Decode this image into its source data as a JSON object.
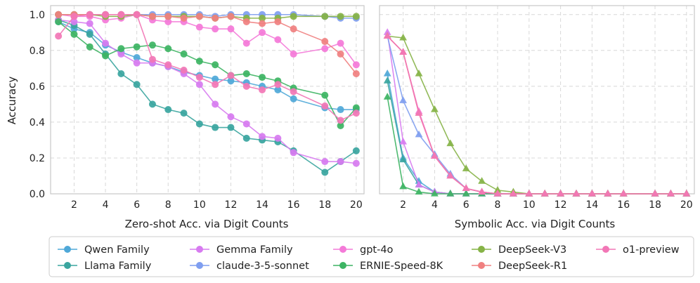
{
  "chart_data": [
    {
      "type": "line",
      "xlabel": "Zero-shot Acc. via Digit Counts",
      "ylabel": "Accuracy",
      "xlim": [
        0.5,
        20.5
      ],
      "ylim": [
        0,
        1.05
      ],
      "xticks": [
        2,
        4,
        6,
        8,
        10,
        12,
        14,
        16,
        18,
        20
      ],
      "yticks": [
        0.0,
        0.2,
        0.4,
        0.6,
        0.8,
        1.0
      ],
      "x": [
        1,
        2,
        3,
        4,
        5,
        6,
        7,
        8,
        9,
        10,
        11,
        12,
        13,
        14,
        15,
        16,
        18,
        19,
        20
      ],
      "grid": true,
      "series": [
        {
          "name": "Qwen Family",
          "color": "#4fa8d8",
          "values": [
            0.96,
            0.92,
            0.9,
            0.83,
            0.79,
            0.76,
            0.73,
            0.71,
            0.68,
            0.66,
            0.64,
            0.63,
            0.62,
            0.6,
            0.58,
            0.53,
            0.48,
            0.47,
            0.47
          ]
        },
        {
          "name": "Llama Family",
          "color": "#3aa59f",
          "values": [
            0.97,
            0.94,
            0.89,
            0.78,
            0.67,
            0.61,
            0.5,
            0.47,
            0.45,
            0.39,
            0.37,
            0.37,
            0.31,
            0.3,
            0.29,
            0.24,
            0.12,
            0.18,
            0.24
          ]
        },
        {
          "name": "Gemma Family",
          "color": "#d77bf0",
          "values": [
            0.97,
            0.96,
            0.95,
            0.84,
            0.78,
            0.73,
            0.73,
            0.71,
            0.67,
            0.61,
            0.5,
            0.43,
            0.39,
            0.32,
            0.31,
            0.23,
            0.18,
            0.18,
            0.17
          ]
        },
        {
          "name": "claude-3-5-sonnet",
          "color": "#7f9ef0",
          "values": [
            1.0,
            1.0,
            1.0,
            1.0,
            1.0,
            1.0,
            1.0,
            1.0,
            1.0,
            1.0,
            0.99,
            1.0,
            1.0,
            1.0,
            1.0,
            1.0,
            0.99,
            0.98,
            0.98
          ]
        },
        {
          "name": "gpt-4o",
          "color": "#f47ad8",
          "values": [
            1.0,
            0.99,
            0.99,
            0.97,
            0.98,
            1.0,
            0.97,
            0.96,
            0.96,
            0.93,
            0.92,
            0.92,
            0.84,
            0.9,
            0.86,
            0.78,
            0.81,
            0.84,
            0.72
          ]
        },
        {
          "name": "ERNIE-Speed-8K",
          "color": "#3db463",
          "values": [
            0.96,
            0.89,
            0.82,
            0.77,
            0.81,
            0.82,
            0.83,
            0.81,
            0.78,
            0.74,
            0.72,
            0.66,
            0.67,
            0.65,
            0.63,
            0.59,
            0.55,
            0.38,
            0.48
          ]
        },
        {
          "name": "DeepSeek-V3",
          "color": "#86b347",
          "values": [
            1.0,
            1.0,
            1.0,
            0.99,
            0.99,
            1.0,
            0.99,
            0.99,
            0.99,
            0.99,
            0.98,
            0.99,
            0.98,
            0.98,
            0.98,
            0.99,
            0.99,
            0.99,
            0.99
          ]
        },
        {
          "name": "DeepSeek-R1",
          "color": "#f08080",
          "values": [
            1.0,
            1.0,
            1.0,
            1.0,
            1.0,
            1.0,
            0.99,
            0.99,
            0.98,
            0.99,
            0.98,
            0.99,
            0.96,
            0.95,
            0.96,
            0.92,
            0.85,
            0.78,
            0.67
          ]
        },
        {
          "name": "o1-preview",
          "color": "#f277b6",
          "values": [
            0.88,
            0.99,
            1.0,
            1.0,
            1.0,
            1.0,
            0.75,
            0.72,
            0.69,
            0.65,
            0.61,
            0.66,
            0.6,
            0.58,
            0.61,
            0.57,
            0.49,
            0.41,
            0.45
          ]
        }
      ]
    },
    {
      "type": "line",
      "xlabel": "Symbolic Acc. via Digit Counts",
      "ylabel": "",
      "xlim": [
        0.5,
        20.5
      ],
      "ylim": [
        0,
        1.05
      ],
      "xticks": [
        2,
        4,
        6,
        8,
        10,
        12,
        14,
        16,
        18,
        20
      ],
      "x": [
        1,
        2,
        3,
        4,
        5,
        6,
        7,
        8,
        9,
        10,
        11,
        12,
        13,
        14,
        15,
        16,
        18,
        19,
        20
      ],
      "marker": "triangle",
      "grid": true,
      "series": [
        {
          "name": "Qwen Family",
          "color": "#4fa8d8",
          "values": [
            0.67,
            0.2,
            0.07,
            0.01,
            0.0,
            0.0,
            0.0,
            0.0,
            0.0,
            0.0,
            0.0,
            0.0,
            0.0,
            0.0,
            0.0,
            0.0,
            0.0,
            0.0,
            0.0
          ]
        },
        {
          "name": "Llama Family",
          "color": "#3aa59f",
          "values": [
            0.63,
            0.19,
            0.05,
            0.01,
            0.0,
            0.0,
            0.0,
            0.0,
            0.0,
            0.0,
            0.0,
            0.0,
            0.0,
            0.0,
            0.0,
            0.0,
            0.0,
            0.0,
            0.0
          ]
        },
        {
          "name": "Gemma Family",
          "color": "#d77bf0",
          "values": [
            0.9,
            0.29,
            0.05,
            0.01,
            0.0,
            0.0,
            0.0,
            0.0,
            0.0,
            0.0,
            0.0,
            0.0,
            0.0,
            0.0,
            0.0,
            0.0,
            0.0,
            0.0,
            0.0
          ]
        },
        {
          "name": "claude-3-5-sonnet",
          "color": "#7f9ef0",
          "values": [
            0.88,
            0.52,
            0.33,
            0.22,
            0.11,
            0.03,
            0.01,
            0.0,
            0.0,
            0.0,
            0.0,
            0.0,
            0.0,
            0.0,
            0.0,
            0.0,
            0.0,
            0.0,
            0.0
          ]
        },
        {
          "name": "gpt-4o",
          "color": "#f47ad8",
          "values": [
            0.88,
            0.79,
            0.46,
            0.21,
            0.1,
            0.03,
            0.01,
            0.0,
            0.0,
            0.0,
            0.0,
            0.0,
            0.0,
            0.0,
            0.0,
            0.0,
            0.0,
            0.0,
            0.0
          ]
        },
        {
          "name": "ERNIE-Speed-8K",
          "color": "#3db463",
          "values": [
            0.54,
            0.04,
            0.01,
            0.0,
            0.0,
            0.0,
            0.0,
            0.0,
            0.0,
            0.0,
            0.0,
            0.0,
            0.0,
            0.0,
            0.0,
            0.0,
            0.0,
            0.0,
            0.0
          ]
        },
        {
          "name": "DeepSeek-V3",
          "color": "#86b347",
          "values": [
            0.88,
            0.87,
            0.67,
            0.47,
            0.28,
            0.14,
            0.07,
            0.02,
            0.01,
            0.0,
            0.0,
            0.0,
            0.0,
            0.0,
            0.0,
            0.0,
            0.0,
            0.0,
            0.0
          ]
        },
        {
          "name": "DeepSeek-R1",
          "color": "#f08080",
          "values": [
            0.88,
            0.79,
            0.45,
            0.21,
            0.1,
            0.03,
            0.01,
            0.0,
            0.0,
            0.0,
            0.0,
            0.0,
            0.0,
            0.0,
            0.0,
            0.0,
            0.0,
            0.0,
            0.0
          ]
        },
        {
          "name": "o1-preview",
          "color": "#f277b6",
          "values": [
            0.88,
            0.79,
            0.45,
            0.21,
            0.1,
            0.03,
            0.01,
            0.0,
            0.0,
            0.0,
            0.0,
            0.0,
            0.0,
            0.0,
            0.0,
            0.0,
            0.0,
            0.0,
            0.0
          ]
        }
      ]
    }
  ],
  "legend": {
    "placement": "bottom",
    "entries": [
      {
        "label": "Qwen Family",
        "color": "#4fa8d8"
      },
      {
        "label": "Llama Family",
        "color": "#3aa59f"
      },
      {
        "label": "Gemma Family",
        "color": "#d77bf0"
      },
      {
        "label": "claude-3-5-sonnet",
        "color": "#7f9ef0"
      },
      {
        "label": "gpt-4o",
        "color": "#f47ad8"
      },
      {
        "label": "ERNIE-Speed-8K",
        "color": "#3db463"
      },
      {
        "label": "DeepSeek-V3",
        "color": "#86b347"
      },
      {
        "label": "DeepSeek-R1",
        "color": "#f08080"
      },
      {
        "label": "o1-preview",
        "color": "#f277b6"
      }
    ]
  }
}
